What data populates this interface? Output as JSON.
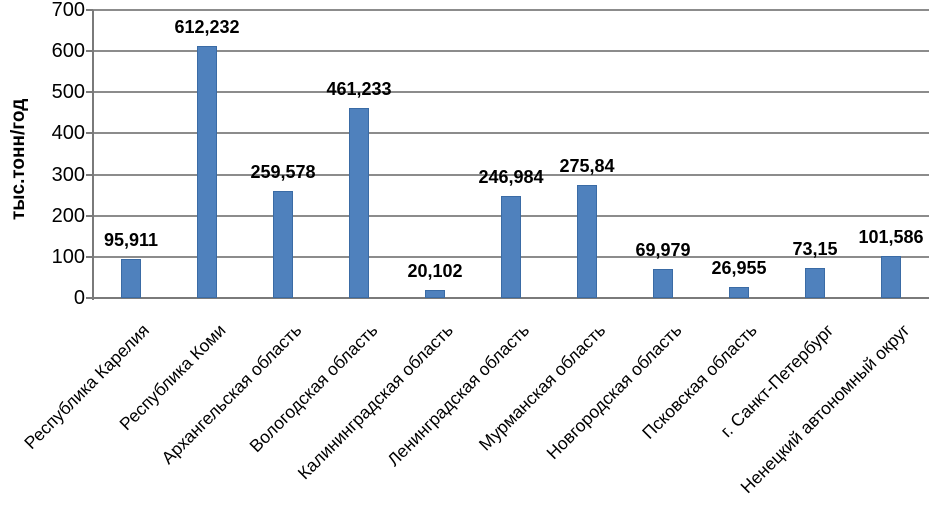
{
  "chart_data": {
    "type": "bar",
    "title": "",
    "xlabel": "",
    "ylabel": "тыс.тонн/год",
    "ylim": [
      0,
      700
    ],
    "ytick_step": 100,
    "yticks": [
      "0",
      "100",
      "200",
      "300",
      "400",
      "500",
      "600",
      "700"
    ],
    "grid": true,
    "legend_position": "none",
    "categories": [
      "Республика Карелия",
      "Республика Коми",
      "Архангельская область",
      "Вологодская область",
      "Калининградская область",
      "Ленинградская область",
      "Мурманская область",
      "Новгородская область",
      "Псковская область",
      "г. Санкт-Петербург",
      "Ненецкий автономный округ"
    ],
    "values": [
      95.911,
      612.232,
      259.578,
      461.233,
      20.102,
      246.984,
      275.84,
      69.979,
      26.955,
      73.15,
      101.586
    ],
    "value_labels": [
      "95,911",
      "612,232",
      "259,578",
      "461,233",
      "20,102",
      "246,984",
      "275,84",
      "69,979",
      "26,955",
      "73,15",
      "101,586"
    ],
    "colors": {
      "bar_fill": "#4f81bd",
      "bar_border": "#3a6ba5",
      "gridline": "#8c8c8c",
      "axis": "#7a7a7a",
      "text": "#000000"
    }
  }
}
